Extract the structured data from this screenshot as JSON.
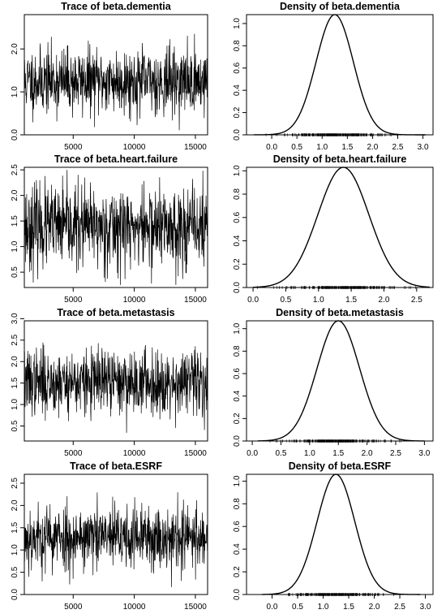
{
  "chart_data": [
    {
      "type": "line",
      "title": "Trace of beta.dementia",
      "x_ticks": [
        5000,
        10000,
        15000
      ],
      "y_ticks": [
        "0.0",
        "1.0",
        "2.0"
      ],
      "xlim": [
        1000,
        16000
      ],
      "ylim": [
        0.0,
        2.8
      ],
      "series": [
        {
          "x_start": 1000,
          "x_end": 16000,
          "mean": 1.25,
          "sd": 0.38,
          "min": 0.1,
          "max": 2.75,
          "points": 700,
          "seed": 11
        }
      ]
    },
    {
      "type": "area",
      "title": "Density of beta.dementia",
      "x_ticks": [
        "0.0",
        "0.5",
        "1.0",
        "1.5",
        "2.0",
        "2.5",
        "3.0"
      ],
      "y_ticks": [
        "0.0",
        "0.2",
        "0.4",
        "0.6",
        "0.8",
        "1.0"
      ],
      "xlim": [
        -0.5,
        3.2
      ],
      "ylim": [
        0.0,
        1.08
      ],
      "density": {
        "mean": 1.25,
        "sd": 0.37,
        "peak": 1.08,
        "range": [
          -0.35,
          3.05
        ]
      },
      "rug": {
        "from": 0.0,
        "to": 2.5
      }
    },
    {
      "type": "line",
      "title": "Trace of beta.heart.failure",
      "x_ticks": [
        5000,
        10000,
        15000
      ],
      "y_ticks": [
        "0.5",
        "1.0",
        "1.5",
        "2.0",
        "2.5"
      ],
      "xlim": [
        1000,
        16000
      ],
      "ylim": [
        0.2,
        2.55
      ],
      "series": [
        {
          "x_start": 1000,
          "x_end": 16000,
          "mean": 1.38,
          "sd": 0.4,
          "min": 0.25,
          "max": 2.5,
          "points": 700,
          "seed": 23
        }
      ]
    },
    {
      "type": "area",
      "title": "Density of beta.heart.failure",
      "x_ticks": [
        "0.0",
        "0.5",
        "1.0",
        "1.5",
        "2.0",
        "2.5"
      ],
      "y_ticks": [
        "0.0",
        "0.2",
        "0.4",
        "0.6",
        "0.8",
        "1.0"
      ],
      "xlim": [
        -0.1,
        2.75
      ],
      "ylim": [
        0.0,
        1.03
      ],
      "density": {
        "mean": 1.38,
        "sd": 0.39,
        "peak": 1.03,
        "range": [
          0.0,
          2.7
        ]
      },
      "rug": {
        "from": 0.3,
        "to": 2.6
      }
    },
    {
      "type": "line",
      "title": "Trace of beta.metastasis",
      "x_ticks": [
        5000,
        10000,
        15000
      ],
      "y_ticks": [
        "0.5",
        "1.0",
        "1.5",
        "2.0",
        "2.5",
        "3.0"
      ],
      "xlim": [
        1000,
        16000
      ],
      "ylim": [
        0.15,
        2.95
      ],
      "series": [
        {
          "x_start": 1000,
          "x_end": 16000,
          "mean": 1.52,
          "sd": 0.38,
          "min": 0.2,
          "max": 2.9,
          "points": 700,
          "seed": 37
        }
      ]
    },
    {
      "type": "area",
      "title": "Density of beta.metastasis",
      "x_ticks": [
        "0.0",
        "0.5",
        "1.0",
        "1.5",
        "2.0",
        "2.5",
        "3.0"
      ],
      "y_ticks": [
        "0.0",
        "0.2",
        "0.4",
        "0.6",
        "0.8",
        "1.0"
      ],
      "xlim": [
        -0.1,
        3.15
      ],
      "ylim": [
        0.0,
        1.07
      ],
      "density": {
        "mean": 1.5,
        "sd": 0.37,
        "peak": 1.07,
        "range": [
          0.1,
          3.0
        ]
      },
      "rug": {
        "from": 0.3,
        "to": 2.6
      }
    },
    {
      "type": "line",
      "title": "Trace of beta.ESRF",
      "x_ticks": [
        5000,
        10000,
        15000
      ],
      "y_ticks": [
        "0.0",
        "0.5",
        "1.0",
        "1.5",
        "2.0",
        "2.5"
      ],
      "xlim": [
        1000,
        16000
      ],
      "ylim": [
        0.0,
        2.7
      ],
      "series": [
        {
          "x_start": 1000,
          "x_end": 16000,
          "mean": 1.28,
          "sd": 0.37,
          "min": 0.05,
          "max": 2.68,
          "points": 700,
          "seed": 53
        }
      ]
    },
    {
      "type": "area",
      "title": "Density of beta.ESRF",
      "x_ticks": [
        "0.0",
        "0.5",
        "1.0",
        "1.5",
        "2.0",
        "2.5",
        "3.0"
      ],
      "y_ticks": [
        "0.0",
        "0.2",
        "0.4",
        "0.6",
        "0.8",
        "1.0"
      ],
      "xlim": [
        -0.5,
        3.15
      ],
      "ylim": [
        0.0,
        1.06
      ],
      "density": {
        "mean": 1.25,
        "sd": 0.37,
        "peak": 1.06,
        "range": [
          -0.2,
          2.9
        ]
      },
      "rug": {
        "from": 0.2,
        "to": 2.5
      }
    }
  ]
}
